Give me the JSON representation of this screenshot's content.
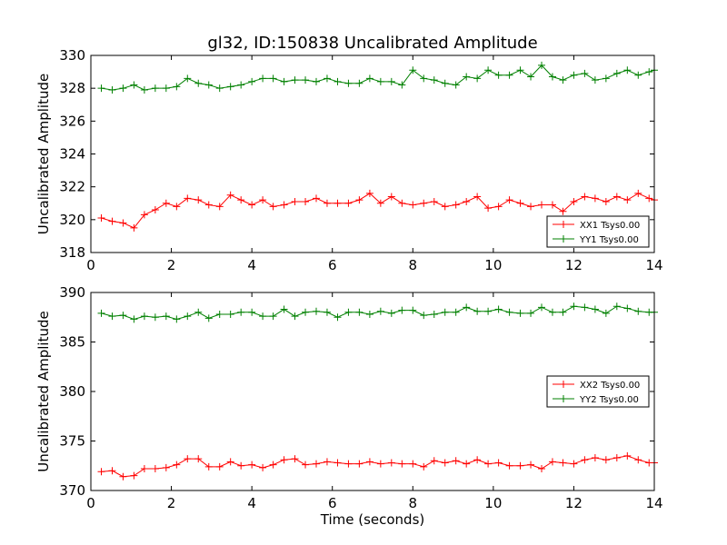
{
  "chart_data": [
    {
      "type": "line",
      "title": "gl32, ID:150838 Uncalibrated Amplitude",
      "xlabel": "",
      "ylabel": "Uncalibrated Amplitude",
      "xlim": [
        0,
        14
      ],
      "ylim": [
        318,
        330
      ],
      "xticks": [
        0,
        2,
        4,
        6,
        8,
        10,
        12,
        14
      ],
      "yticks": [
        318,
        320,
        322,
        324,
        326,
        328,
        330
      ],
      "legend_position": "lower-right",
      "series": [
        {
          "name": "XX1 Tsys0.00",
          "color": "#ff0000",
          "x": [
            0.26,
            0.53,
            0.8,
            1.07,
            1.33,
            1.6,
            1.87,
            2.13,
            2.4,
            2.67,
            2.93,
            3.2,
            3.47,
            3.73,
            4.0,
            4.27,
            4.53,
            4.8,
            5.07,
            5.33,
            5.6,
            5.87,
            6.13,
            6.4,
            6.67,
            6.93,
            7.2,
            7.47,
            7.73,
            8.0,
            8.27,
            8.53,
            8.8,
            9.07,
            9.33,
            9.6,
            9.87,
            10.13,
            10.4,
            10.67,
            10.93,
            11.2,
            11.47,
            11.73,
            12.0,
            12.27,
            12.53,
            12.8,
            13.07,
            13.33,
            13.6,
            13.87,
            14.0
          ],
          "values": [
            320.1,
            319.9,
            319.8,
            319.5,
            320.3,
            320.6,
            321.0,
            320.8,
            321.3,
            321.2,
            320.9,
            320.8,
            321.5,
            321.2,
            320.9,
            321.2,
            320.8,
            320.9,
            321.1,
            321.1,
            321.3,
            321.0,
            321.0,
            321.0,
            321.2,
            321.6,
            321.0,
            321.4,
            321.0,
            320.9,
            321.0,
            321.1,
            320.8,
            320.9,
            321.1,
            321.4,
            320.7,
            320.8,
            321.2,
            321.0,
            320.8,
            320.9,
            320.9,
            320.5,
            321.1,
            321.4,
            321.3,
            321.1,
            321.4,
            321.2,
            321.6,
            321.3,
            321.2
          ]
        },
        {
          "name": "YY1 Tsys0.00",
          "color": "#008000",
          "x": [
            0.26,
            0.53,
            0.8,
            1.07,
            1.33,
            1.6,
            1.87,
            2.13,
            2.4,
            2.67,
            2.93,
            3.2,
            3.47,
            3.73,
            4.0,
            4.27,
            4.53,
            4.8,
            5.07,
            5.33,
            5.6,
            5.87,
            6.13,
            6.4,
            6.67,
            6.93,
            7.2,
            7.47,
            7.73,
            8.0,
            8.27,
            8.53,
            8.8,
            9.07,
            9.33,
            9.6,
            9.87,
            10.13,
            10.4,
            10.67,
            10.93,
            11.2,
            11.47,
            11.73,
            12.0,
            12.27,
            12.53,
            12.8,
            13.07,
            13.33,
            13.6,
            13.87,
            14.0
          ],
          "values": [
            328.0,
            327.9,
            328.0,
            328.2,
            327.9,
            328.0,
            328.0,
            328.1,
            328.6,
            328.3,
            328.2,
            328.0,
            328.1,
            328.2,
            328.4,
            328.6,
            328.6,
            328.4,
            328.5,
            328.5,
            328.4,
            328.6,
            328.4,
            328.3,
            328.3,
            328.6,
            328.4,
            328.4,
            328.2,
            329.1,
            328.6,
            328.5,
            328.3,
            328.2,
            328.7,
            328.6,
            329.1,
            328.8,
            328.8,
            329.1,
            328.7,
            329.4,
            328.7,
            328.5,
            328.8,
            328.9,
            328.5,
            328.6,
            328.9,
            329.1,
            328.8,
            329.0,
            329.1
          ]
        }
      ]
    },
    {
      "type": "line",
      "title": "",
      "xlabel": "Time (seconds)",
      "ylabel": "Uncalibrated Amplitude",
      "xlim": [
        0,
        14
      ],
      "ylim": [
        370,
        390
      ],
      "xticks": [
        0,
        2,
        4,
        6,
        8,
        10,
        12,
        14
      ],
      "yticks": [
        370,
        375,
        380,
        385,
        390
      ],
      "legend_position": "center-right",
      "series": [
        {
          "name": "XX2 Tsys0.00",
          "color": "#ff0000",
          "x": [
            0.26,
            0.53,
            0.8,
            1.07,
            1.33,
            1.6,
            1.87,
            2.13,
            2.4,
            2.67,
            2.93,
            3.2,
            3.47,
            3.73,
            4.0,
            4.27,
            4.53,
            4.8,
            5.07,
            5.33,
            5.6,
            5.87,
            6.13,
            6.4,
            6.67,
            6.93,
            7.2,
            7.47,
            7.73,
            8.0,
            8.27,
            8.53,
            8.8,
            9.07,
            9.33,
            9.6,
            9.87,
            10.13,
            10.4,
            10.67,
            10.93,
            11.2,
            11.47,
            11.73,
            12.0,
            12.27,
            12.53,
            12.8,
            13.07,
            13.33,
            13.6,
            13.87,
            14.0
          ],
          "values": [
            371.9,
            372.0,
            371.4,
            371.5,
            372.2,
            372.2,
            372.3,
            372.6,
            373.2,
            373.2,
            372.4,
            372.4,
            372.9,
            372.5,
            372.6,
            372.3,
            372.6,
            373.1,
            373.2,
            372.6,
            372.7,
            372.9,
            372.8,
            372.7,
            372.7,
            372.9,
            372.7,
            372.8,
            372.7,
            372.7,
            372.4,
            373.0,
            372.8,
            373.0,
            372.7,
            373.1,
            372.7,
            372.8,
            372.5,
            372.5,
            372.6,
            372.2,
            372.9,
            372.8,
            372.7,
            373.1,
            373.3,
            373.1,
            373.3,
            373.5,
            373.1,
            372.8,
            372.8
          ]
        },
        {
          "name": "YY2 Tsys0.00",
          "color": "#008000",
          "x": [
            0.26,
            0.53,
            0.8,
            1.07,
            1.33,
            1.6,
            1.87,
            2.13,
            2.4,
            2.67,
            2.93,
            3.2,
            3.47,
            3.73,
            4.0,
            4.27,
            4.53,
            4.8,
            5.07,
            5.33,
            5.6,
            5.87,
            6.13,
            6.4,
            6.67,
            6.93,
            7.2,
            7.47,
            7.73,
            8.0,
            8.27,
            8.53,
            8.8,
            9.07,
            9.33,
            9.6,
            9.87,
            10.13,
            10.4,
            10.67,
            10.93,
            11.2,
            11.47,
            11.73,
            12.0,
            12.27,
            12.53,
            12.8,
            13.07,
            13.33,
            13.6,
            13.87,
            14.0
          ],
          "values": [
            387.9,
            387.6,
            387.7,
            387.3,
            387.6,
            387.5,
            387.6,
            387.3,
            387.6,
            388.0,
            387.4,
            387.8,
            387.8,
            388.0,
            388.0,
            387.6,
            387.6,
            388.3,
            387.6,
            388.0,
            388.1,
            388.0,
            387.5,
            388.0,
            388.0,
            387.8,
            388.1,
            387.9,
            388.2,
            388.2,
            387.7,
            387.8,
            388.0,
            388.0,
            388.5,
            388.1,
            388.1,
            388.3,
            388.0,
            387.9,
            387.9,
            388.5,
            388.0,
            388.0,
            388.6,
            388.5,
            388.3,
            387.9,
            388.6,
            388.4,
            388.1,
            388.0,
            388.0
          ]
        }
      ]
    }
  ]
}
